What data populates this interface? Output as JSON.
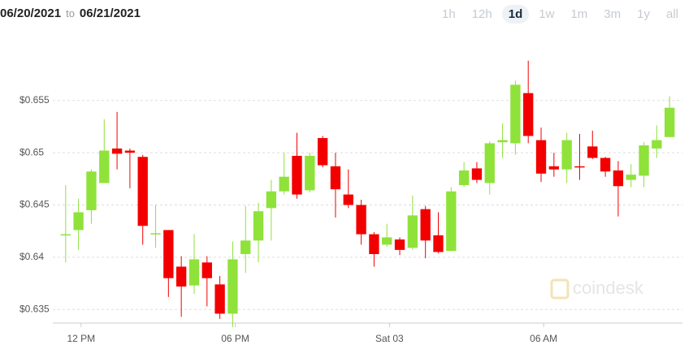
{
  "header": {
    "date_from": "06/20/2021",
    "to": "to",
    "date_to": "06/21/2021",
    "ranges": [
      "1h",
      "12h",
      "1d",
      "1w",
      "1m",
      "3m",
      "1y",
      "all"
    ],
    "selected_range": 2
  },
  "watermark": "coindesk",
  "chart_data": {
    "type": "candlestick",
    "up_color": "#8fe23a",
    "down_color": "#f20000",
    "grid": true,
    "open": [
      0.6422,
      0.6426,
      0.6445,
      0.6471,
      0.6504,
      0.6502,
      0.6496,
      0.6423,
      0.6426,
      0.6391,
      0.6373,
      0.6395,
      0.6374,
      0.6346,
      0.6403,
      0.6416,
      0.6447,
      0.6463,
      0.6497,
      0.6464,
      0.6514,
      0.6487,
      0.646,
      0.645,
      0.6422,
      0.6412,
      0.6417,
      0.6409,
      0.6446,
      0.6421,
      0.6406,
      0.6469,
      0.6485,
      0.6471,
      0.651,
      0.6509,
      0.6557,
      0.6512,
      0.6487,
      0.6484,
      0.6487,
      0.6506,
      0.6495,
      0.6483,
      0.6474,
      0.6478,
      0.6504,
      0.6515
    ],
    "high": [
      0.6469,
      0.6456,
      0.6484,
      0.6532,
      0.6539,
      0.6504,
      0.6498,
      0.645,
      0.6426,
      0.6401,
      0.6422,
      0.6401,
      0.6382,
      0.6415,
      0.6449,
      0.6452,
      0.6474,
      0.65,
      0.6519,
      0.65,
      0.6516,
      0.65,
      0.6484,
      0.6455,
      0.6424,
      0.6432,
      0.6419,
      0.6459,
      0.6449,
      0.6443,
      0.6467,
      0.6491,
      0.6491,
      0.6511,
      0.6528,
      0.6569,
      0.6588,
      0.6524,
      0.65,
      0.6519,
      0.6518,
      0.6521,
      0.6496,
      0.6492,
      0.6489,
      0.651,
      0.6526,
      0.6554
    ],
    "low": [
      0.6395,
      0.6407,
      0.6432,
      0.6471,
      0.6484,
      0.6466,
      0.6412,
      0.6409,
      0.6362,
      0.6343,
      0.6365,
      0.6353,
      0.6341,
      0.6333,
      0.6385,
      0.6395,
      0.6416,
      0.646,
      0.6456,
      0.6462,
      0.6486,
      0.6438,
      0.6447,
      0.6412,
      0.6391,
      0.641,
      0.6402,
      0.6407,
      0.6399,
      0.6404,
      0.6406,
      0.6467,
      0.6471,
      0.646,
      0.6495,
      0.6498,
      0.6509,
      0.6472,
      0.6477,
      0.6471,
      0.6474,
      0.6494,
      0.6477,
      0.6439,
      0.6467,
      0.6467,
      0.6495,
      0.6515
    ],
    "close": [
      0.6422,
      0.6443,
      0.6482,
      0.6502,
      0.6499,
      0.65,
      0.643,
      0.6423,
      0.638,
      0.6372,
      0.6398,
      0.638,
      0.6346,
      0.6398,
      0.6416,
      0.6444,
      0.6463,
      0.6477,
      0.646,
      0.6497,
      0.6488,
      0.6465,
      0.645,
      0.6422,
      0.6403,
      0.6419,
      0.6407,
      0.644,
      0.6416,
      0.6405,
      0.6463,
      0.6483,
      0.6474,
      0.6509,
      0.6512,
      0.6565,
      0.6516,
      0.648,
      0.6484,
      0.6512,
      0.6486,
      0.6495,
      0.6482,
      0.6468,
      0.6479,
      0.6507,
      0.6512,
      0.6543
    ],
    "xlim": [
      -1,
      48
    ],
    "ylim": [
      0.6337,
      0.6615
    ],
    "xticks": [
      {
        "value": 1.2,
        "label": "12 PM"
      },
      {
        "value": 13.2,
        "label": "06 PM"
      },
      {
        "value": 25.2,
        "label": "Sat 03"
      },
      {
        "value": 37.2,
        "label": "06 AM"
      }
    ],
    "yticks": [
      {
        "value": 0.635,
        "label": "$0.635"
      },
      {
        "value": 0.64,
        "label": "$0.64"
      },
      {
        "value": 0.645,
        "label": "$0.645"
      },
      {
        "value": 0.65,
        "label": "$0.65"
      },
      {
        "value": 0.655,
        "label": "$0.655"
      }
    ]
  }
}
